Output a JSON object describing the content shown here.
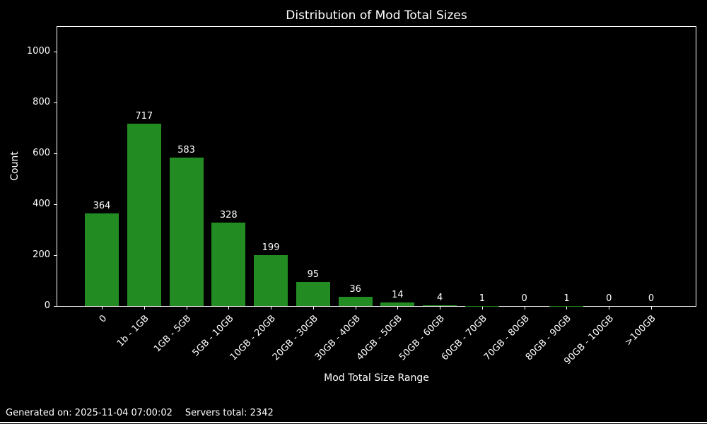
{
  "chart_data": {
    "type": "bar",
    "title": "Distribution of Mod Total Sizes",
    "categories": [
      "0",
      "1b - 1GB",
      "1GB - 5GB",
      "5GB - 10GB",
      "10GB - 20GB",
      "20GB - 30GB",
      "30GB - 40GB",
      "40GB - 50GB",
      "50GB - 60GB",
      "60GB - 70GB",
      "70GB - 80GB",
      "80GB - 90GB",
      "90GB - 100GB",
      ">100GB"
    ],
    "values": [
      364,
      717,
      583,
      328,
      199,
      95,
      36,
      14,
      4,
      1,
      0,
      1,
      0,
      0
    ],
    "xlabel": "Mod Total Size Range",
    "ylabel": "Count",
    "yticks": [
      0,
      200,
      400,
      600,
      800,
      1000
    ],
    "ylim": [
      0,
      1096
    ],
    "grid": false,
    "legend_position": "none",
    "bar_labels_shown": true,
    "bar_color": "#228B22",
    "background_color": "#000000",
    "text_color": "#ffffff",
    "axis_color": "#ffffff"
  },
  "footer": {
    "generated": "Generated on: 2025-11-04 07:00:02",
    "servers_total": "Servers total: 2342"
  }
}
